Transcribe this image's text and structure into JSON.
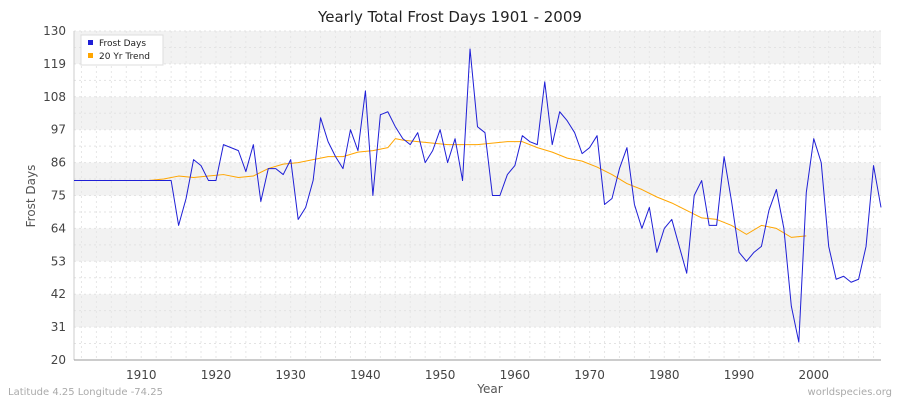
{
  "chart_data": {
    "type": "line",
    "title": "Yearly Total Frost Days 1901 - 2009",
    "xlabel": "Year",
    "ylabel": "Frost Days",
    "xlim": [
      1901,
      2009
    ],
    "ylim": [
      20,
      130
    ],
    "yticks": [
      20,
      31,
      42,
      53,
      64,
      75,
      86,
      97,
      108,
      119,
      130
    ],
    "xticks": [
      1910,
      1920,
      1930,
      1940,
      1950,
      1960,
      1970,
      1980,
      1990,
      2000
    ],
    "legend_position": "top-left",
    "colors": {
      "frost": "#1f1fd6",
      "trend": "#ffa500"
    },
    "series": [
      {
        "name": "Frost Days",
        "x": [
          1901,
          1902,
          1903,
          1904,
          1905,
          1906,
          1907,
          1908,
          1909,
          1910,
          1911,
          1912,
          1913,
          1914,
          1915,
          1916,
          1917,
          1918,
          1919,
          1920,
          1921,
          1922,
          1923,
          1924,
          1925,
          1926,
          1927,
          1928,
          1929,
          1930,
          1931,
          1932,
          1933,
          1934,
          1935,
          1936,
          1937,
          1938,
          1939,
          1940,
          1941,
          1942,
          1943,
          1944,
          1945,
          1946,
          1947,
          1948,
          1949,
          1950,
          1951,
          1952,
          1953,
          1954,
          1955,
          1956,
          1957,
          1958,
          1959,
          1960,
          1961,
          1962,
          1963,
          1964,
          1965,
          1966,
          1967,
          1968,
          1969,
          1970,
          1971,
          1972,
          1973,
          1974,
          1975,
          1976,
          1977,
          1978,
          1979,
          1980,
          1981,
          1982,
          1983,
          1984,
          1985,
          1986,
          1987,
          1988,
          1989,
          1990,
          1991,
          1992,
          1993,
          1994,
          1995,
          1996,
          1997,
          1998,
          1999,
          2000,
          2001,
          2002,
          2003,
          2004,
          2005,
          2006,
          2007,
          2008,
          2009
        ],
        "values": [
          80,
          80,
          80,
          80,
          80,
          80,
          80,
          80,
          80,
          80,
          80,
          80,
          80,
          80,
          65,
          74,
          87,
          85,
          80,
          80,
          92,
          91,
          90,
          83,
          92,
          73,
          84,
          84,
          82,
          87,
          67,
          71,
          80,
          101,
          93,
          88,
          84,
          97,
          90,
          110,
          75,
          102,
          103,
          98,
          94,
          92,
          96,
          86,
          90,
          97,
          86,
          94,
          80,
          124,
          98,
          96,
          75,
          75,
          82,
          85,
          95,
          93,
          92,
          113,
          92,
          103,
          100,
          96,
          89,
          91,
          95,
          72,
          74,
          84,
          91,
          72,
          64,
          71,
          56,
          64,
          67,
          58,
          49,
          75,
          80,
          65,
          65,
          88,
          73,
          56,
          53,
          56,
          58,
          70,
          77,
          64,
          38,
          26,
          76,
          94,
          86,
          58,
          47,
          48,
          46,
          47,
          58,
          85,
          71
        ]
      },
      {
        "name": "20 Yr Trend",
        "x": [
          1911,
          1913,
          1915,
          1917,
          1919,
          1921,
          1923,
          1925,
          1927,
          1929,
          1931,
          1933,
          1935,
          1937,
          1939,
          1941,
          1943,
          1944,
          1945,
          1947,
          1949,
          1951,
          1953,
          1955,
          1957,
          1959,
          1961,
          1963,
          1965,
          1967,
          1969,
          1971,
          1973,
          1975,
          1977,
          1979,
          1981,
          1983,
          1985,
          1987,
          1988,
          1989,
          1991,
          1993,
          1995,
          1997,
          1999
        ],
        "values": [
          80,
          80.5,
          81.5,
          81,
          81.5,
          82,
          81,
          81.5,
          84,
          85.5,
          86,
          87,
          88,
          88,
          89.5,
          90,
          91,
          94,
          93.5,
          93,
          92.5,
          92,
          92,
          92,
          92.5,
          93,
          93,
          91,
          89.5,
          87.5,
          86.5,
          84.5,
          82,
          79,
          77,
          74.5,
          72.5,
          70,
          67.5,
          67,
          66,
          65,
          62,
          65,
          64,
          61,
          61.5
        ]
      }
    ]
  },
  "footer": {
    "left": "Latitude 4.25 Longitude -74.25",
    "right": "worldspecies.org"
  }
}
